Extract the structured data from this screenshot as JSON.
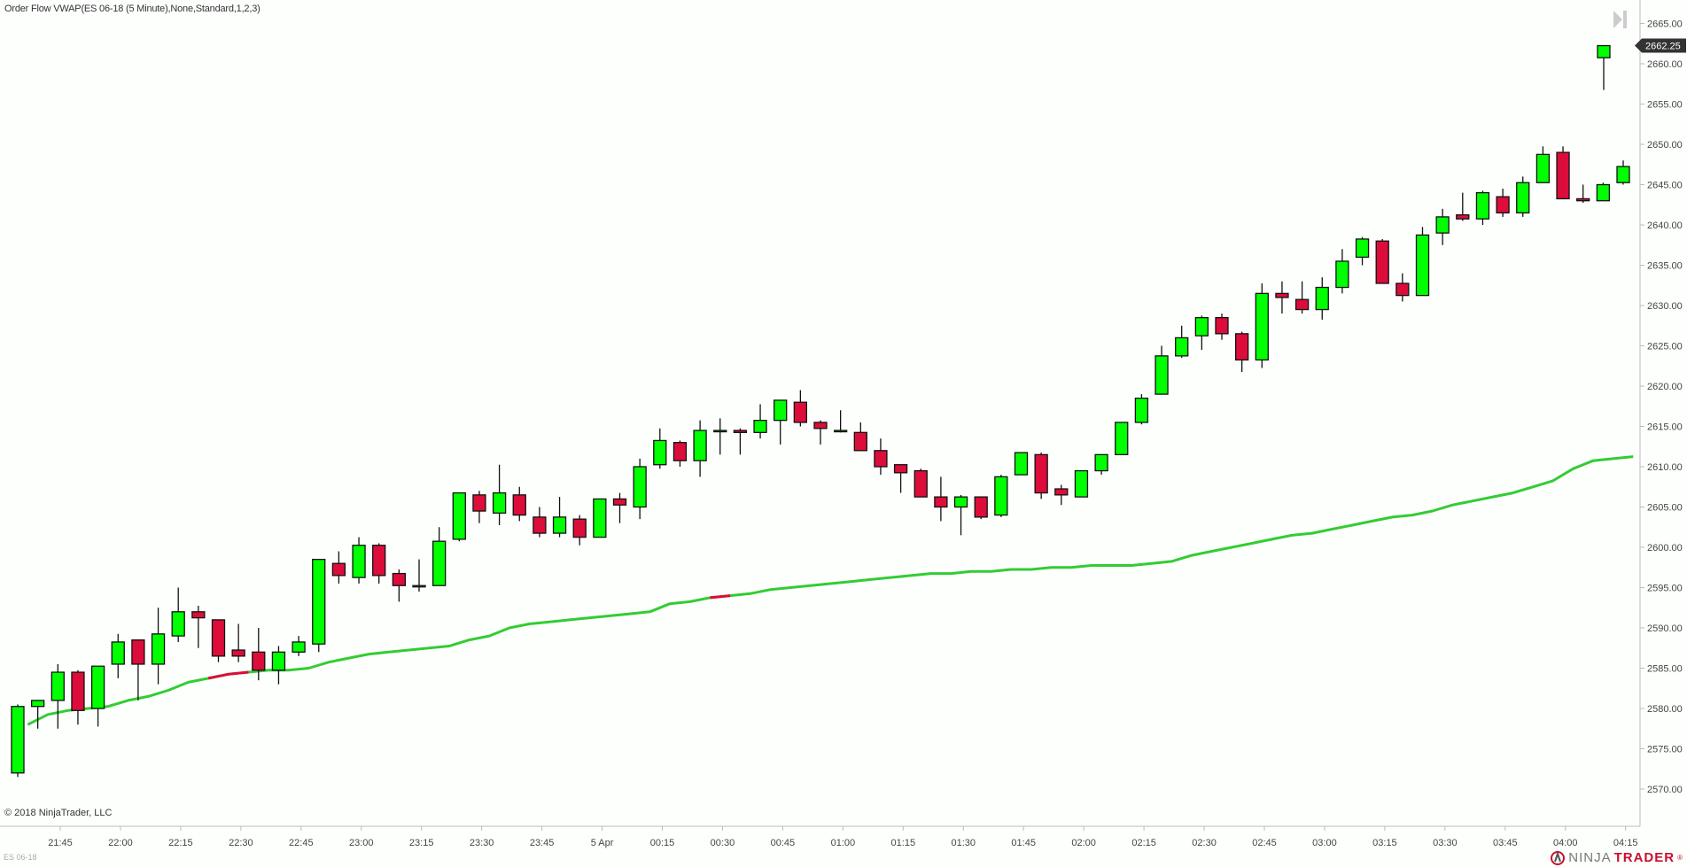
{
  "header": {
    "indicator_title": "Order Flow VWAP(ES 06-18 (5 Minute),None,Standard,1,2,3)"
  },
  "footer": {
    "copyright": "© 2018 NinjaTrader, LLC",
    "instrument": "ES 06-18",
    "logo_ninja": "NINJA",
    "logo_trader": "TRADER",
    "logo_reg": "®"
  },
  "price_marker": {
    "value": "2662.25",
    "color": "#333333"
  },
  "colors": {
    "up": "#00ff00",
    "down": "#dc0d3a",
    "outline": "#111111",
    "vwap": "#33cc33",
    "vwap_down": "#dc0d3a",
    "axis": "#bbbbbb"
  },
  "chart_data": {
    "type": "candlestick",
    "title": "Order Flow VWAP(ES 06-18 (5 Minute),None,Standard,1,2,3)",
    "instrument": "ES 06-18",
    "interval": "5 Minute",
    "xlabel": "",
    "ylabel": "",
    "ylim": [
      2567,
      2667
    ],
    "y_ticks": [
      "2570.00",
      "2575.00",
      "2580.00",
      "2585.00",
      "2590.00",
      "2595.00",
      "2600.00",
      "2605.00",
      "2610.00",
      "2615.00",
      "2620.00",
      "2625.00",
      "2630.00",
      "2635.00",
      "2640.00",
      "2645.00",
      "2650.00",
      "2655.00",
      "2660.00",
      "2665.00"
    ],
    "x_ticks": [
      "21:45",
      "22:00",
      "22:15",
      "22:30",
      "22:45",
      "23:00",
      "23:15",
      "23:30",
      "23:45",
      "5 Apr",
      "00:15",
      "00:30",
      "00:45",
      "01:00",
      "01:15",
      "01:30",
      "01:45",
      "02:00",
      "02:15",
      "02:30",
      "02:45",
      "03:00",
      "03:15",
      "03:30",
      "03:45",
      "04:00",
      "04:15"
    ],
    "legend_position": "none",
    "grid": false,
    "last_price": 2662.25,
    "candles": [
      {
        "o": 2572.0,
        "h": 2580.5,
        "l": 2571.5,
        "c": 2580.25
      },
      {
        "o": 2580.25,
        "h": 2581.0,
        "l": 2577.5,
        "c": 2581.0
      },
      {
        "o": 2581.0,
        "h": 2585.5,
        "l": 2577.5,
        "c": 2584.5
      },
      {
        "o": 2584.5,
        "h": 2584.75,
        "l": 2578.0,
        "c": 2579.75
      },
      {
        "o": 2580.0,
        "h": 2585.25,
        "l": 2577.75,
        "c": 2585.25
      },
      {
        "o": 2585.5,
        "h": 2589.25,
        "l": 2583.75,
        "c": 2588.25
      },
      {
        "o": 2588.5,
        "h": 2588.5,
        "l": 2581.0,
        "c": 2585.5
      },
      {
        "o": 2585.5,
        "h": 2592.5,
        "l": 2583.0,
        "c": 2589.25
      },
      {
        "o": 2589.0,
        "h": 2595.0,
        "l": 2588.25,
        "c": 2592.0
      },
      {
        "o": 2592.0,
        "h": 2592.75,
        "l": 2587.5,
        "c": 2591.25
      },
      {
        "o": 2591.0,
        "h": 2591.0,
        "l": 2585.75,
        "c": 2586.5
      },
      {
        "o": 2587.25,
        "h": 2590.5,
        "l": 2585.75,
        "c": 2586.5
      },
      {
        "o": 2587.0,
        "h": 2590.0,
        "l": 2583.5,
        "c": 2584.75
      },
      {
        "o": 2584.75,
        "h": 2587.75,
        "l": 2583.0,
        "c": 2587.0
      },
      {
        "o": 2587.0,
        "h": 2589.0,
        "l": 2586.5,
        "c": 2588.25
      },
      {
        "o": 2588.0,
        "h": 2598.5,
        "l": 2587.0,
        "c": 2598.5
      },
      {
        "o": 2598.0,
        "h": 2599.5,
        "l": 2595.5,
        "c": 2596.5
      },
      {
        "o": 2596.25,
        "h": 2601.25,
        "l": 2595.5,
        "c": 2600.25
      },
      {
        "o": 2600.25,
        "h": 2600.5,
        "l": 2595.5,
        "c": 2596.5
      },
      {
        "o": 2596.75,
        "h": 2597.25,
        "l": 2593.25,
        "c": 2595.25
      },
      {
        "o": 2595.25,
        "h": 2598.5,
        "l": 2594.5,
        "c": 2595.25
      },
      {
        "o": 2595.25,
        "h": 2602.5,
        "l": 2595.25,
        "c": 2600.75
      },
      {
        "o": 2601.0,
        "h": 2606.75,
        "l": 2600.75,
        "c": 2606.75
      },
      {
        "o": 2606.5,
        "h": 2607.0,
        "l": 2603.0,
        "c": 2604.5
      },
      {
        "o": 2604.25,
        "h": 2610.25,
        "l": 2602.75,
        "c": 2606.75
      },
      {
        "o": 2606.5,
        "h": 2607.5,
        "l": 2603.25,
        "c": 2604.0
      },
      {
        "o": 2603.75,
        "h": 2605.0,
        "l": 2601.25,
        "c": 2601.75
      },
      {
        "o": 2601.75,
        "h": 2606.25,
        "l": 2601.25,
        "c": 2603.75
      },
      {
        "o": 2603.5,
        "h": 2604.0,
        "l": 2600.25,
        "c": 2601.25
      },
      {
        "o": 2601.25,
        "h": 2606.0,
        "l": 2601.25,
        "c": 2606.0
      },
      {
        "o": 2606.0,
        "h": 2606.75,
        "l": 2603.0,
        "c": 2605.25
      },
      {
        "o": 2605.0,
        "h": 2611.0,
        "l": 2603.5,
        "c": 2610.0
      },
      {
        "o": 2610.25,
        "h": 2614.75,
        "l": 2609.75,
        "c": 2613.25
      },
      {
        "o": 2613.0,
        "h": 2613.25,
        "l": 2610.0,
        "c": 2610.75
      },
      {
        "o": 2610.75,
        "h": 2615.75,
        "l": 2608.75,
        "c": 2614.5
      },
      {
        "o": 2614.5,
        "h": 2616.0,
        "l": 2611.5,
        "c": 2614.5
      },
      {
        "o": 2614.5,
        "h": 2614.75,
        "l": 2611.5,
        "c": 2614.25
      },
      {
        "o": 2614.25,
        "h": 2617.75,
        "l": 2613.5,
        "c": 2615.75
      },
      {
        "o": 2615.75,
        "h": 2618.25,
        "l": 2612.75,
        "c": 2618.25
      },
      {
        "o": 2618.0,
        "h": 2619.5,
        "l": 2615.0,
        "c": 2615.5
      },
      {
        "o": 2615.5,
        "h": 2615.75,
        "l": 2612.75,
        "c": 2614.75
      },
      {
        "o": 2614.5,
        "h": 2617.0,
        "l": 2614.25,
        "c": 2614.5
      },
      {
        "o": 2614.25,
        "h": 2615.5,
        "l": 2612.0,
        "c": 2612.0
      },
      {
        "o": 2612.0,
        "h": 2613.5,
        "l": 2609.0,
        "c": 2610.0
      },
      {
        "o": 2610.25,
        "h": 2610.25,
        "l": 2606.75,
        "c": 2609.25
      },
      {
        "o": 2609.5,
        "h": 2609.75,
        "l": 2606.25,
        "c": 2606.25
      },
      {
        "o": 2606.25,
        "h": 2608.75,
        "l": 2603.25,
        "c": 2605.0
      },
      {
        "o": 2605.0,
        "h": 2606.5,
        "l": 2601.5,
        "c": 2606.25
      },
      {
        "o": 2606.25,
        "h": 2606.25,
        "l": 2603.5,
        "c": 2603.75
      },
      {
        "o": 2604.0,
        "h": 2609.0,
        "l": 2603.75,
        "c": 2608.75
      },
      {
        "o": 2609.0,
        "h": 2611.75,
        "l": 2609.0,
        "c": 2611.75
      },
      {
        "o": 2611.5,
        "h": 2611.75,
        "l": 2606.0,
        "c": 2606.75
      },
      {
        "o": 2607.25,
        "h": 2607.75,
        "l": 2605.25,
        "c": 2606.5
      },
      {
        "o": 2606.25,
        "h": 2609.5,
        "l": 2606.25,
        "c": 2609.5
      },
      {
        "o": 2609.5,
        "h": 2611.5,
        "l": 2609.0,
        "c": 2611.5
      },
      {
        "o": 2611.5,
        "h": 2615.5,
        "l": 2611.5,
        "c": 2615.5
      },
      {
        "o": 2615.5,
        "h": 2619.0,
        "l": 2615.25,
        "c": 2618.5
      },
      {
        "o": 2619.0,
        "h": 2625.0,
        "l": 2619.0,
        "c": 2623.75
      },
      {
        "o": 2623.75,
        "h": 2627.5,
        "l": 2623.5,
        "c": 2626.0
      },
      {
        "o": 2626.25,
        "h": 2628.75,
        "l": 2624.5,
        "c": 2628.5
      },
      {
        "o": 2628.5,
        "h": 2629.0,
        "l": 2625.75,
        "c": 2626.5
      },
      {
        "o": 2626.5,
        "h": 2626.75,
        "l": 2621.75,
        "c": 2623.25
      },
      {
        "o": 2623.25,
        "h": 2632.75,
        "l": 2622.25,
        "c": 2631.5
      },
      {
        "o": 2631.5,
        "h": 2633.0,
        "l": 2629.0,
        "c": 2631.0
      },
      {
        "o": 2630.75,
        "h": 2633.0,
        "l": 2629.0,
        "c": 2629.5
      },
      {
        "o": 2629.5,
        "h": 2633.5,
        "l": 2628.25,
        "c": 2632.25
      },
      {
        "o": 2632.25,
        "h": 2637.0,
        "l": 2631.5,
        "c": 2635.5
      },
      {
        "o": 2636.0,
        "h": 2638.5,
        "l": 2635.0,
        "c": 2638.25
      },
      {
        "o": 2638.0,
        "h": 2638.25,
        "l": 2632.75,
        "c": 2632.75
      },
      {
        "o": 2632.75,
        "h": 2634.0,
        "l": 2630.5,
        "c": 2631.25
      },
      {
        "o": 2631.25,
        "h": 2639.75,
        "l": 2631.25,
        "c": 2638.75
      },
      {
        "o": 2639.0,
        "h": 2642.0,
        "l": 2637.5,
        "c": 2641.0
      },
      {
        "o": 2641.25,
        "h": 2644.0,
        "l": 2640.5,
        "c": 2640.75
      },
      {
        "o": 2640.75,
        "h": 2644.25,
        "l": 2640.0,
        "c": 2644.0
      },
      {
        "o": 2643.5,
        "h": 2644.5,
        "l": 2641.0,
        "c": 2641.5
      },
      {
        "o": 2641.5,
        "h": 2646.0,
        "l": 2641.0,
        "c": 2645.25
      },
      {
        "o": 2645.25,
        "h": 2649.75,
        "l": 2645.25,
        "c": 2648.75
      },
      {
        "o": 2649.0,
        "h": 2649.75,
        "l": 2643.25,
        "c": 2643.25
      },
      {
        "o": 2643.25,
        "h": 2645.0,
        "l": 2642.75,
        "c": 2643.0
      },
      {
        "o": 2643.0,
        "h": 2645.25,
        "l": 2643.0,
        "c": 2645.0
      },
      {
        "o": 2645.25,
        "h": 2648.0,
        "l": 2645.0,
        "c": 2647.25
      },
      {
        "o": 2660.75,
        "h": 2662.25,
        "l": 2656.75,
        "c": 2662.25
      }
    ],
    "series": [
      {
        "name": "Order Flow VWAP",
        "color": "#33cc33",
        "values": [
          2578.0,
          2579.25,
          2579.75,
          2580.0,
          2580.25,
          2581.0,
          2581.5,
          2582.25,
          2583.25,
          2583.75,
          2584.25,
          2584.5,
          2584.75,
          2584.75,
          2585.0,
          2585.75,
          2586.25,
          2586.75,
          2587.0,
          2587.25,
          2587.5,
          2587.75,
          2588.5,
          2589.0,
          2590.0,
          2590.5,
          2590.75,
          2591.0,
          2591.25,
          2591.5,
          2591.75,
          2592.0,
          2593.0,
          2593.25,
          2593.75,
          2594.0,
          2594.25,
          2594.75,
          2595.0,
          2595.25,
          2595.5,
          2595.75,
          2596.0,
          2596.25,
          2596.5,
          2596.75,
          2596.75,
          2597.0,
          2597.0,
          2597.25,
          2597.25,
          2597.5,
          2597.5,
          2597.75,
          2597.75,
          2597.75,
          2598.0,
          2598.25,
          2599.0,
          2599.5,
          2600.0,
          2600.5,
          2601.0,
          2601.5,
          2601.75,
          2602.25,
          2602.75,
          2603.25,
          2603.75,
          2604.0,
          2604.5,
          2605.25,
          2605.75,
          2606.25,
          2606.75,
          2607.5,
          2608.25,
          2609.75,
          2610.75,
          2611.0,
          2611.25
        ]
      }
    ]
  }
}
